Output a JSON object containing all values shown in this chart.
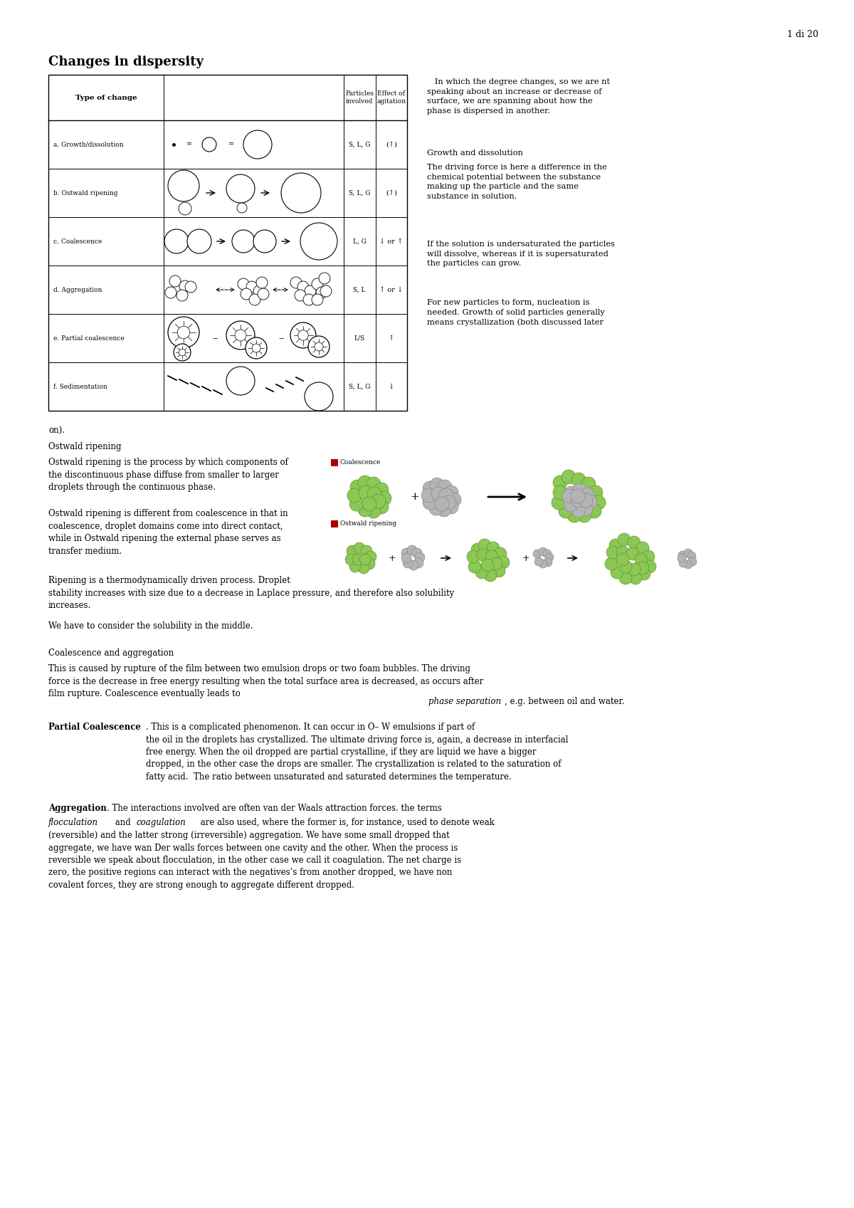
{
  "page_number": "1 di 20",
  "title": "Changes in dispersity",
  "bg_color": "#ffffff",
  "table_rows": [
    {
      "label": "a. Growth/dissolution",
      "particles": "S, L, G",
      "agitation": "(↑)"
    },
    {
      "label": "b. Ostwald ripening",
      "particles": "S, L, G",
      "agitation": "(↑)"
    },
    {
      "label": "c. Coalescence",
      "particles": "L, G",
      "agitation": "↓ or ↑"
    },
    {
      "label": "d. Aggregation",
      "particles": "S, L",
      "agitation": "↑ or ↓"
    },
    {
      "label": "e. Partial coalescence",
      "particles": "L/S",
      "agitation": "↑"
    },
    {
      "label": "f. Sedimentation",
      "particles": "S, L, G",
      "agitation": "↓"
    }
  ],
  "green_color": "#8bc34a",
  "green_dark": "#6a9e30",
  "grey_color": "#b0b0b0",
  "grey_dark": "#888888"
}
